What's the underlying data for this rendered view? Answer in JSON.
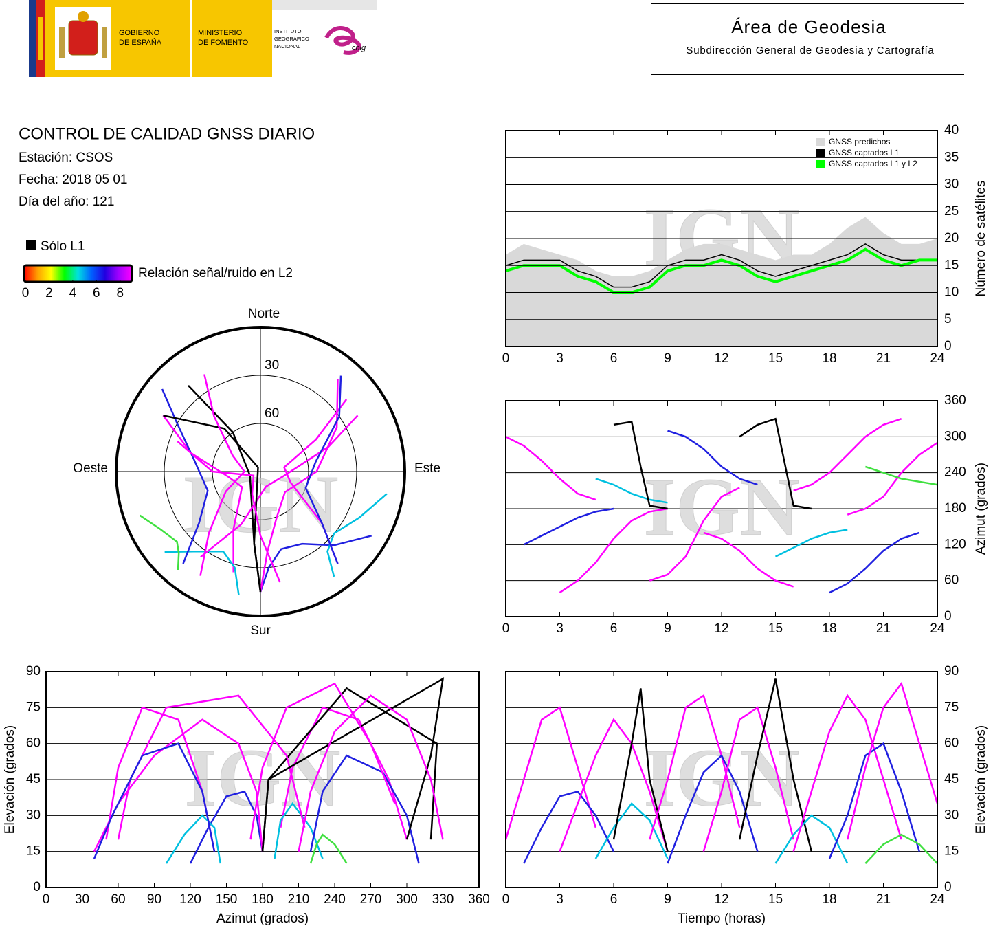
{
  "header": {
    "gov": [
      "GOBIERNO",
      "DE ESPAÑA"
    ],
    "ministry": [
      "MINISTERIO",
      "DE FOMENTO"
    ],
    "institute": [
      "INSTITUTO",
      "GEOGRÁFICO",
      "NACIONAL"
    ],
    "cnig": "cnig",
    "title": "Área de Geodesia",
    "subtitle": "Subdirección General de Geodesia y Cartografía"
  },
  "info": {
    "title": "CONTROL DE CALIDAD GNSS DIARIO",
    "lines": [
      "Estación: CSOS",
      "Fecha: 2018 05 01",
      "Día del año: 121"
    ]
  },
  "legend": {
    "l1_only": "Sólo L1",
    "l1_color": "#000000",
    "colorbar_label": "Relación señal/ruido en L2",
    "colorbar_lim": [
      0,
      9
    ],
    "colorbar_ticks": [
      0,
      2,
      4,
      6,
      8
    ],
    "colorbar_colors": [
      "#ff0000",
      "#ffa000",
      "#ffff00",
      "#00ff00",
      "#00e0e0",
      "#0060ff",
      "#2000e0",
      "#a000ff",
      "#ff00ff"
    ]
  },
  "watermark": "IGN",
  "tracks": [
    {
      "color": "#ff00ff",
      "t": [
        0,
        1,
        2,
        3,
        4,
        5
      ],
      "az": [
        300,
        285,
        260,
        230,
        205,
        195
      ],
      "el": [
        20,
        45,
        70,
        75,
        50,
        25
      ]
    },
    {
      "color": "#2020e0",
      "t": [
        1,
        2,
        3,
        4,
        5,
        6
      ],
      "az": [
        120,
        135,
        150,
        165,
        175,
        180
      ],
      "el": [
        10,
        25,
        38,
        40,
        30,
        15
      ]
    },
    {
      "color": "#ff00ff",
      "t": [
        3,
        4,
        5,
        6,
        7,
        8,
        9
      ],
      "az": [
        40,
        60,
        90,
        130,
        160,
        175,
        180
      ],
      "el": [
        15,
        35,
        55,
        70,
        60,
        40,
        15
      ]
    },
    {
      "color": "#00c0e0",
      "t": [
        5,
        6,
        7,
        8,
        9
      ],
      "az": [
        230,
        220,
        205,
        195,
        190
      ],
      "el": [
        12,
        25,
        35,
        28,
        12
      ]
    },
    {
      "color": "#000000",
      "t": [
        6,
        7,
        7.5,
        8,
        9
      ],
      "az": [
        320,
        325,
        250,
        185,
        180
      ],
      "el": [
        20,
        60,
        83,
        45,
        15
      ]
    },
    {
      "color": "#ff00ff",
      "t": [
        8,
        9,
        10,
        11,
        12,
        13
      ],
      "az": [
        60,
        70,
        100,
        160,
        200,
        215
      ],
      "el": [
        20,
        45,
        75,
        80,
        55,
        25
      ]
    },
    {
      "color": "#2020e0",
      "t": [
        9,
        10,
        11,
        12,
        13,
        14
      ],
      "az": [
        310,
        300,
        280,
        250,
        230,
        220
      ],
      "el": [
        10,
        30,
        48,
        55,
        40,
        15
      ]
    },
    {
      "color": "#ff00ff",
      "t": [
        11,
        12,
        13,
        14,
        15,
        16
      ],
      "az": [
        140,
        130,
        110,
        80,
        60,
        50
      ],
      "el": [
        15,
        40,
        70,
        75,
        50,
        20
      ]
    },
    {
      "color": "#000000",
      "t": [
        13,
        14,
        15,
        16,
        17
      ],
      "az": [
        300,
        320,
        330,
        185,
        180
      ],
      "el": [
        20,
        55,
        87,
        45,
        15
      ]
    },
    {
      "color": "#00c0e0",
      "t": [
        15,
        16,
        17,
        18,
        19
      ],
      "az": [
        100,
        115,
        130,
        140,
        145
      ],
      "el": [
        10,
        22,
        30,
        25,
        10
      ]
    },
    {
      "color": "#ff00ff",
      "t": [
        16,
        17,
        18,
        19,
        20,
        21,
        22
      ],
      "az": [
        210,
        220,
        240,
        270,
        300,
        320,
        330
      ],
      "el": [
        15,
        40,
        65,
        80,
        70,
        45,
        20
      ]
    },
    {
      "color": "#2020e0",
      "t": [
        18,
        19,
        20,
        21,
        22,
        23
      ],
      "az": [
        40,
        55,
        80,
        110,
        130,
        140
      ],
      "el": [
        12,
        30,
        55,
        60,
        40,
        15
      ]
    },
    {
      "color": "#ff00ff",
      "t": [
        19,
        20,
        21,
        22,
        23,
        24
      ],
      "az": [
        170,
        180,
        200,
        240,
        270,
        290
      ],
      "el": [
        20,
        50,
        75,
        85,
        60,
        35
      ]
    },
    {
      "color": "#40e040",
      "t": [
        20,
        21,
        22,
        23,
        24
      ],
      "az": [
        250,
        240,
        230,
        225,
        220
      ],
      "el": [
        10,
        18,
        22,
        18,
        10
      ]
    }
  ],
  "chart_data": [
    {
      "type": "line",
      "y_label": "Número de satélites",
      "x": [
        0,
        1,
        2,
        3,
        4,
        5,
        6,
        7,
        8,
        9,
        10,
        11,
        12,
        13,
        14,
        15,
        16,
        17,
        18,
        19,
        20,
        21,
        22,
        23,
        24
      ],
      "series": [
        {
          "name": "GNSS predichos",
          "color": "#d9d9d9",
          "style": "area",
          "values": [
            17,
            19,
            18,
            17,
            16,
            14,
            13,
            13,
            14,
            16,
            18,
            19,
            19,
            18,
            17,
            16,
            17,
            17,
            19,
            22,
            24,
            21,
            19,
            19,
            20
          ]
        },
        {
          "name": "GNSS captados L1",
          "color": "#000000",
          "style": "line",
          "values": [
            15,
            16,
            16,
            16,
            14,
            13,
            11,
            11,
            12,
            15,
            16,
            16,
            17,
            16,
            14,
            13,
            14,
            15,
            16,
            17,
            19,
            17,
            16,
            16,
            16
          ]
        },
        {
          "name": "GNSS captados L1 y L2",
          "color": "#00ff00",
          "style": "line",
          "values": [
            14,
            15,
            15,
            15,
            13,
            12,
            10,
            10,
            11,
            14,
            15,
            15,
            16,
            15,
            13,
            12,
            13,
            14,
            15,
            16,
            18,
            16,
            15,
            16,
            16
          ]
        }
      ],
      "xlim": [
        0,
        24
      ],
      "xticks": [
        0,
        3,
        6,
        9,
        12,
        15,
        18,
        21,
        24
      ],
      "ylim": [
        0,
        40
      ],
      "yticks": [
        0,
        5,
        10,
        15,
        20,
        25,
        30,
        35,
        40
      ],
      "grid": true
    },
    {
      "type": "polar",
      "north": "Norte",
      "south": "Sur",
      "east": "Este",
      "west": "Oeste",
      "rings": [
        30,
        60
      ]
    },
    {
      "type": "timeazimuth",
      "y_label": "Azimut (grados)",
      "xlim": [
        0,
        24
      ],
      "xticks": [
        0,
        3,
        6,
        9,
        12,
        15,
        18,
        21,
        24
      ],
      "ylim": [
        0,
        360
      ],
      "yticks": [
        0,
        60,
        120,
        180,
        240,
        300,
        360
      ],
      "grid": true
    },
    {
      "type": "elevationazimuth",
      "x_label": "Azimut (grados)",
      "y_label": "Elevación (grados)",
      "xlim": [
        0,
        360
      ],
      "xticks": [
        0,
        30,
        60,
        90,
        120,
        150,
        180,
        210,
        240,
        270,
        300,
        330,
        360
      ],
      "ylim": [
        0,
        90
      ],
      "yticks": [
        0,
        15,
        30,
        45,
        60,
        75,
        90
      ],
      "grid": true
    },
    {
      "type": "elevationtime",
      "x_label": "Tiempo (horas)",
      "y_label": "Elevación (grados)",
      "xlim": [
        0,
        24
      ],
      "xticks": [
        0,
        3,
        6,
        9,
        12,
        15,
        18,
        21,
        24
      ],
      "ylim": [
        0,
        90
      ],
      "yticks": [
        0,
        15,
        30,
        45,
        60,
        75,
        90
      ],
      "grid": true
    }
  ]
}
